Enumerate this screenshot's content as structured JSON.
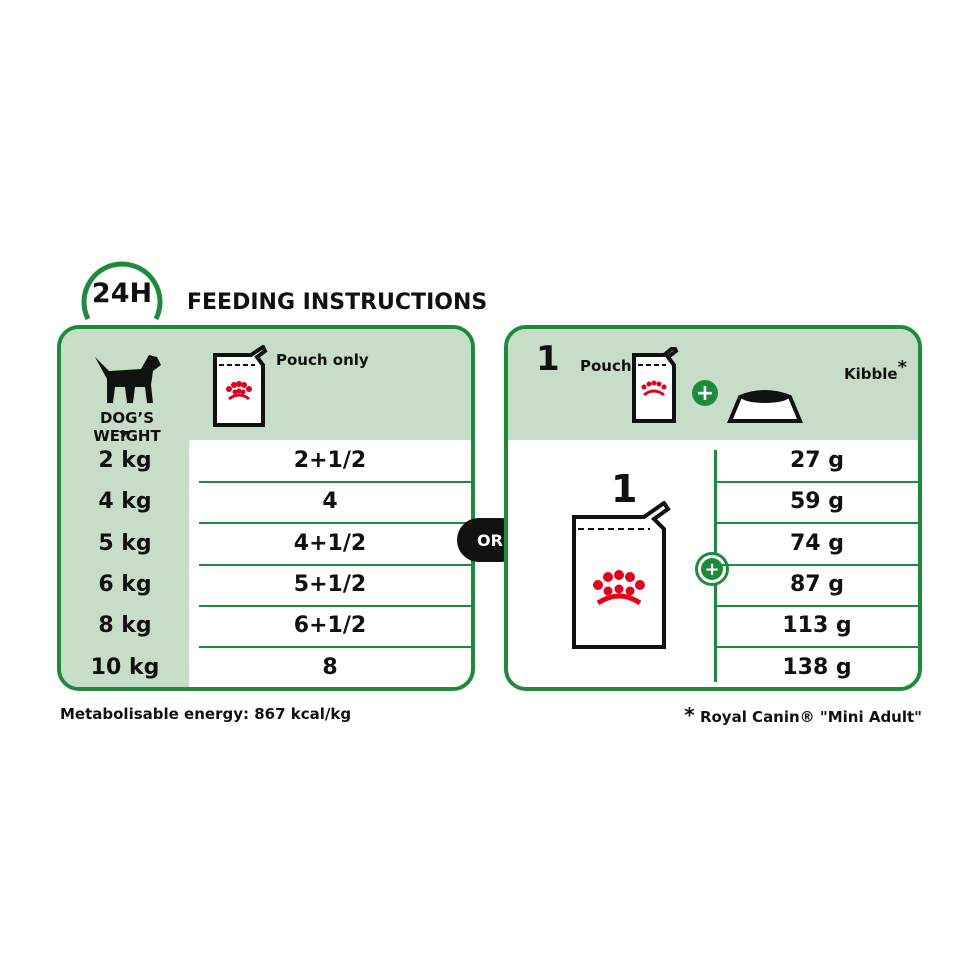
{
  "header": {
    "clock_label": "24H",
    "title": "FEEDING INSTRUCTIONS"
  },
  "left": {
    "weight_label": "DOG’S WEIGHT",
    "pouch_label": "Pouch only",
    "rows": [
      {
        "weight": "2 kg",
        "pouch": "2+1/2"
      },
      {
        "weight": "4 kg",
        "pouch": "4"
      },
      {
        "weight": "5 kg",
        "pouch": "4+1/2"
      },
      {
        "weight": "6 kg",
        "pouch": "5+1/2"
      },
      {
        "weight": "8 kg",
        "pouch": "6+1/2"
      },
      {
        "weight": "10 kg",
        "pouch": "8"
      }
    ]
  },
  "or_label": "OR",
  "right": {
    "count": "1",
    "pouch_label": "Pouch",
    "kibble_label": "Kibble",
    "asterisk": "*",
    "big_pouch_count": "1",
    "kibble": [
      "27 g",
      "59 g",
      "74 g",
      "87 g",
      "113 g",
      "138 g"
    ]
  },
  "footer": {
    "energy": "Metabolisable energy: 867 kcal/kg",
    "note_star": "*",
    "note": "Royal Canin® \"Mini Adult\""
  },
  "colors": {
    "green": "#1e8a3c",
    "light_green": "#c8ddc8",
    "crown_red": "#e2001a"
  }
}
